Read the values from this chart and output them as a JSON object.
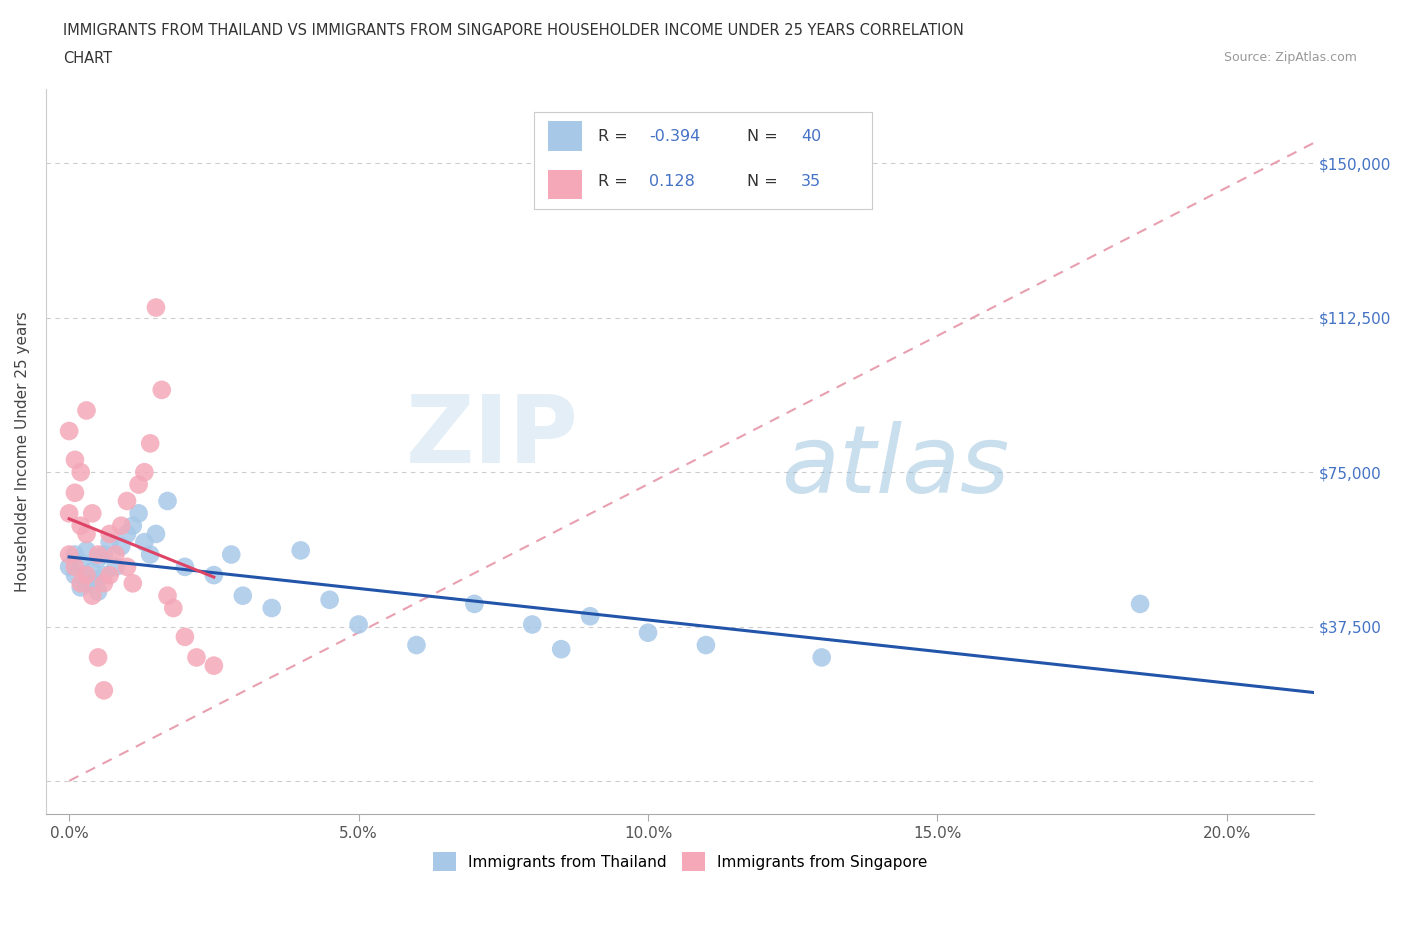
{
  "title_line1": "IMMIGRANTS FROM THAILAND VS IMMIGRANTS FROM SINGAPORE HOUSEHOLDER INCOME UNDER 25 YEARS CORRELATION",
  "title_line2": "CHART",
  "source_text": "Source: ZipAtlas.com",
  "ylabel": "Householder Income Under 25 years",
  "x_ticks": [
    0.0,
    0.05,
    0.1,
    0.15,
    0.2
  ],
  "x_tick_labels": [
    "0.0%",
    "5.0%",
    "10.0%",
    "15.0%",
    "20.0%"
  ],
  "y_ticks": [
    0,
    37500,
    75000,
    112500,
    150000
  ],
  "y_tick_labels": [
    "",
    "$37,500",
    "$75,000",
    "$112,500",
    "$150,000"
  ],
  "xlim": [
    -0.004,
    0.215
  ],
  "ylim": [
    -8000,
    168000
  ],
  "thailand_color": "#a8c8e8",
  "singapore_color": "#f4a8b8",
  "thailand_R": -0.394,
  "thailand_N": 40,
  "singapore_R": 0.128,
  "singapore_N": 35,
  "watermark_zip": "ZIP",
  "watermark_atlas": "atlas",
  "bg_color": "#ffffff",
  "grid_color": "#cccccc",
  "title_color": "#333333",
  "tick_label_color": "#4472c4",
  "thailand_scatter_x": [
    0.0,
    0.001,
    0.001,
    0.002,
    0.002,
    0.003,
    0.003,
    0.004,
    0.004,
    0.005,
    0.005,
    0.006,
    0.006,
    0.007,
    0.008,
    0.009,
    0.01,
    0.011,
    0.012,
    0.013,
    0.014,
    0.015,
    0.017,
    0.02,
    0.025,
    0.028,
    0.03,
    0.035,
    0.04,
    0.045,
    0.05,
    0.06,
    0.07,
    0.08,
    0.085,
    0.09,
    0.1,
    0.11,
    0.13,
    0.185
  ],
  "thailand_scatter_y": [
    52000,
    50000,
    55000,
    47000,
    53000,
    48000,
    56000,
    51000,
    49000,
    54000,
    46000,
    55000,
    50000,
    58000,
    52000,
    57000,
    60000,
    62000,
    65000,
    58000,
    55000,
    60000,
    68000,
    52000,
    50000,
    55000,
    45000,
    42000,
    56000,
    44000,
    38000,
    33000,
    43000,
    38000,
    32000,
    40000,
    36000,
    33000,
    30000,
    43000
  ],
  "singapore_scatter_x": [
    0.0,
    0.0,
    0.0,
    0.001,
    0.001,
    0.001,
    0.002,
    0.002,
    0.002,
    0.003,
    0.003,
    0.003,
    0.004,
    0.004,
    0.005,
    0.005,
    0.006,
    0.006,
    0.007,
    0.007,
    0.008,
    0.009,
    0.01,
    0.01,
    0.011,
    0.012,
    0.013,
    0.014,
    0.015,
    0.016,
    0.017,
    0.018,
    0.02,
    0.022,
    0.025
  ],
  "singapore_scatter_y": [
    55000,
    65000,
    85000,
    70000,
    52000,
    78000,
    62000,
    48000,
    75000,
    60000,
    50000,
    90000,
    65000,
    45000,
    55000,
    30000,
    48000,
    22000,
    50000,
    60000,
    55000,
    62000,
    52000,
    68000,
    48000,
    72000,
    75000,
    82000,
    115000,
    95000,
    45000,
    42000,
    35000,
    30000,
    28000
  ],
  "dashed_line_color": "#e8a0b0",
  "thailand_trend_color": "#2255aa",
  "singapore_trend_color": "#dd4466"
}
